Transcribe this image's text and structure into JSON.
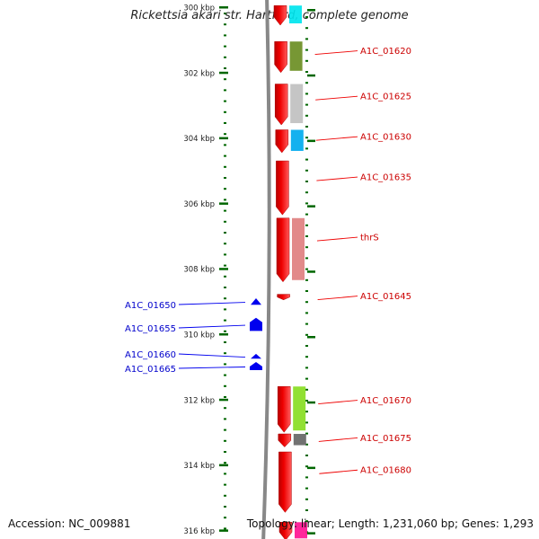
{
  "title": "Rickettsia akari str. Hartford, complete genome",
  "footer": {
    "accession": "Accession: NC_009881",
    "topology": "Topology: linear; Length: 1,231,060 bp; Genes: 1,293"
  },
  "scale": {
    "unit": "kbp",
    "ticks": [
      {
        "label": "300 kbp",
        "kbp": 300
      },
      {
        "label": "302 kbp",
        "kbp": 302
      },
      {
        "label": "304 kbp",
        "kbp": 304
      },
      {
        "label": "306 kbp",
        "kbp": 306
      },
      {
        "label": "308 kbp",
        "kbp": 308
      },
      {
        "label": "310 kbp",
        "kbp": 310
      },
      {
        "label": "312 kbp",
        "kbp": 312
      },
      {
        "label": "314 kbp",
        "kbp": 314
      },
      {
        "label": "316 kbp",
        "kbp": 316
      }
    ]
  },
  "colors": {
    "forward_gene": "#ee0000",
    "reverse_gene": "#0000ee",
    "scale_tick": "#006600",
    "backbone": "#888888"
  },
  "forward_genes": [
    {
      "label": "",
      "start_kbp": 299.95,
      "end_kbp": 300.55,
      "cog_color": "#00e5ee"
    },
    {
      "label": "A1C_01620",
      "start_kbp": 301.05,
      "end_kbp": 302.0,
      "cog_color": "#6b8e23"
    },
    {
      "label": "A1C_01625",
      "start_kbp": 302.35,
      "end_kbp": 303.6,
      "cog_color": "#c0c0c0"
    },
    {
      "label": "A1C_01630",
      "start_kbp": 303.75,
      "end_kbp": 304.45,
      "cog_color": "#00aaee"
    },
    {
      "label": "A1C_01635",
      "start_kbp": 304.7,
      "end_kbp": 306.35,
      "cog_color": ""
    },
    {
      "label": "thrS",
      "start_kbp": 306.45,
      "end_kbp": 308.4,
      "cog_color": "#e08080"
    },
    {
      "label": "A1C_01645",
      "start_kbp": 308.78,
      "end_kbp": 308.95,
      "cog_color": ""
    },
    {
      "label": "A1C_01670",
      "start_kbp": 311.6,
      "end_kbp": 313.0,
      "cog_color": "#88dd22"
    },
    {
      "label": "A1C_01675",
      "start_kbp": 313.05,
      "end_kbp": 313.45,
      "cog_color": "#666666"
    },
    {
      "label": "A1C_01680",
      "start_kbp": 313.6,
      "end_kbp": 315.45,
      "cog_color": ""
    },
    {
      "label": "",
      "start_kbp": 315.75,
      "end_kbp": 316.3,
      "cog_color": "#ff1493"
    }
  ],
  "reverse_genes": [
    {
      "label": "A1C_01650",
      "start_kbp": 308.9,
      "end_kbp": 309.1
    },
    {
      "label": "A1C_01655",
      "start_kbp": 309.5,
      "end_kbp": 309.9
    },
    {
      "label": "A1C_01660",
      "start_kbp": 310.6,
      "end_kbp": 310.75
    },
    {
      "label": "A1C_01665",
      "start_kbp": 310.85,
      "end_kbp": 311.1
    }
  ]
}
